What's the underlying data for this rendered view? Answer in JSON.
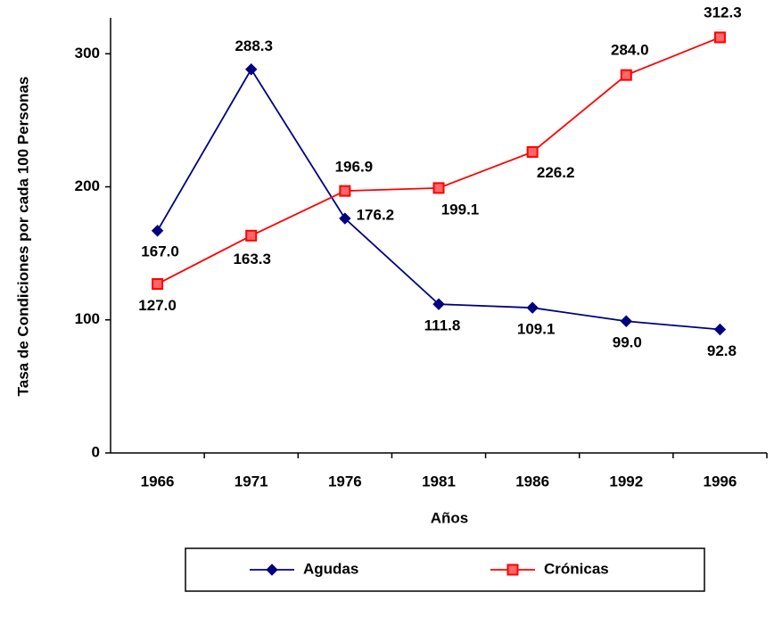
{
  "chart_data": {
    "type": "line",
    "categories": [
      "1966",
      "1971",
      "1976",
      "1981",
      "1986",
      "1992",
      "1996"
    ],
    "series": [
      {
        "name": "Agudas",
        "color": "#000080",
        "marker": "diamond",
        "values": [
          167.0,
          288.3,
          176.2,
          111.8,
          109.1,
          99.0,
          92.8
        ],
        "value_labels": [
          "167.0",
          "288.3",
          "176.2",
          "111.8",
          "109.1",
          "99.0",
          "92.8"
        ]
      },
      {
        "name": "Crónicas",
        "color": "#ff0000",
        "marker": "square",
        "values": [
          127.0,
          163.3,
          196.9,
          199.1,
          226.2,
          284.0,
          312.3
        ],
        "value_labels": [
          "127.0",
          "163.3",
          "196.9",
          "199.1",
          "226.2",
          "284.0",
          "312.3"
        ]
      }
    ],
    "x_label": "Años",
    "y_label": "Tasa de Condiciones por cada 100 Personas",
    "ylim": [
      0,
      327
    ],
    "yticks": [
      0,
      100,
      200,
      300
    ],
    "grid": false,
    "legend": "bottom"
  }
}
